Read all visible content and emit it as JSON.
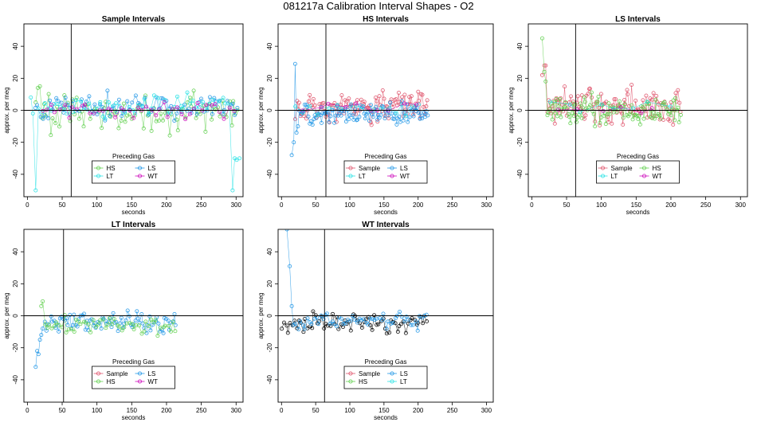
{
  "figure": {
    "title": "081217a   Calibration Interval Shapes - O2"
  },
  "colors": {
    "Sample": "#df536b",
    "HS": "#61d04f",
    "LS": "#2297e6",
    "LT": "#28e2e5",
    "WT": "#cd0bbc",
    "black": "#000000"
  },
  "chart_data": [
    {
      "type": "scatter",
      "title": "Sample Intervals",
      "xlabel": "seconds",
      "ylabel": "approx. per meg",
      "xlim": [
        -5,
        310
      ],
      "ylim": [
        -54,
        54
      ],
      "xticks": [
        0,
        50,
        100,
        150,
        200,
        250,
        300
      ],
      "yticks": [
        -40,
        -20,
        0,
        20,
        40
      ],
      "vline": 63,
      "hline": 0,
      "legend": {
        "title": "Preceding Gas",
        "position": "bottom-center",
        "entries": [
          "HS",
          "LS",
          "LT",
          "WT"
        ]
      },
      "series": [
        {
          "name": "HS",
          "x_range": [
            12,
            305
          ],
          "n": 90,
          "mean": -2,
          "noise": 10,
          "start": [
            [
              12,
              5
            ],
            [
              15,
              14
            ],
            [
              18,
              15
            ]
          ]
        },
        {
          "name": "LS",
          "x_range": [
            10,
            305
          ],
          "n": 80,
          "mean": 3,
          "noise": 7
        },
        {
          "name": "LT",
          "x_range": [
            5,
            305
          ],
          "n": 60,
          "mean": 2,
          "noise": 6,
          "start": [
            [
              5,
              8
            ],
            [
              8,
              -2
            ],
            [
              12,
              -50
            ]
          ],
          "end": [
            [
              295,
              -50
            ],
            [
              298,
              -30
            ],
            [
              301,
              -31
            ],
            [
              305,
              -30
            ]
          ]
        },
        {
          "name": "WT",
          "x_range": [
            20,
            300
          ],
          "n": 45,
          "mean": 0,
          "noise": 5
        }
      ]
    },
    {
      "type": "scatter",
      "title": "HS Intervals",
      "xlabel": "seconds",
      "ylabel": "approx. per meg",
      "xlim": [
        -5,
        310
      ],
      "ylim": [
        -54,
        54
      ],
      "xticks": [
        0,
        50,
        100,
        150,
        200,
        250,
        300
      ],
      "yticks": [
        -40,
        -20,
        0,
        20,
        40
      ],
      "vline": 65,
      "hline": 0,
      "legend": {
        "title": "Preceding Gas",
        "position": "bottom-center",
        "entries": [
          "Sample",
          "LS",
          "LT",
          "WT"
        ]
      },
      "series": [
        {
          "name": "Sample",
          "x_range": [
            20,
            215
          ],
          "n": 110,
          "mean": 2,
          "noise": 8
        },
        {
          "name": "LS",
          "x_range": [
            15,
            215
          ],
          "n": 100,
          "mean": -2,
          "noise": 6,
          "start": [
            [
              15,
              -28
            ],
            [
              18,
              -20
            ],
            [
              20,
              29
            ],
            [
              22,
              -14
            ],
            [
              24,
              -10
            ]
          ]
        },
        {
          "name": "LT",
          "x_range": [
            20,
            210
          ],
          "n": 20,
          "mean": 1,
          "noise": 4
        },
        {
          "name": "WT",
          "x_range": [
            30,
            210
          ],
          "n": 10,
          "mean": 2,
          "noise": 3
        }
      ]
    },
    {
      "type": "scatter",
      "title": "LS Intervals",
      "xlabel": "seconds",
      "ylabel": "approx. per meg",
      "xlim": [
        -5,
        310
      ],
      "ylim": [
        -54,
        54
      ],
      "xticks": [
        0,
        50,
        100,
        150,
        200,
        250,
        300
      ],
      "yticks": [
        -40,
        -20,
        0,
        20,
        40
      ],
      "vline": 63,
      "hline": 0,
      "legend": {
        "title": "Preceding Gas",
        "position": "bottom-center",
        "entries": [
          "Sample",
          "HS",
          "LT",
          "WT"
        ]
      },
      "series": [
        {
          "name": "Sample",
          "x_range": [
            15,
            215
          ],
          "n": 110,
          "mean": 3,
          "noise": 9,
          "start": [
            [
              15,
              22
            ],
            [
              18,
              28
            ],
            [
              20,
              28
            ]
          ]
        },
        {
          "name": "HS",
          "x_range": [
            15,
            215
          ],
          "n": 110,
          "mean": 0,
          "noise": 8,
          "start": [
            [
              15,
              45
            ],
            [
              18,
              24
            ],
            [
              20,
              18
            ]
          ]
        },
        {
          "name": "LT",
          "x_range": [
            20,
            210
          ],
          "n": 8,
          "mean": 2,
          "noise": 4
        },
        {
          "name": "WT",
          "x_range": [
            30,
            200
          ],
          "n": 6,
          "mean": 1,
          "noise": 3
        }
      ]
    },
    {
      "type": "scatter",
      "title": "LT Intervals",
      "xlabel": "seconds",
      "ylabel": "approx. per meg",
      "xlim": [
        -5,
        310
      ],
      "ylim": [
        -54,
        54
      ],
      "xticks": [
        0,
        50,
        100,
        150,
        200,
        250,
        300
      ],
      "yticks": [
        -40,
        -20,
        0,
        20,
        40
      ],
      "vline": 52,
      "hline": 0,
      "legend": {
        "title": "Preceding Gas",
        "position": "bottom-center",
        "entries": [
          "Sample",
          "LS",
          "HS",
          "WT"
        ]
      },
      "series": [
        {
          "name": "LS",
          "x_range": [
            12,
            215
          ],
          "n": 85,
          "mean": -4,
          "noise": 6,
          "start": [
            [
              12,
              -32
            ],
            [
              14,
              -22
            ],
            [
              16,
              -24
            ],
            [
              18,
              -15
            ],
            [
              20,
              -12
            ],
            [
              22,
              -8
            ]
          ]
        },
        {
          "name": "HS",
          "x_range": [
            20,
            215
          ],
          "n": 55,
          "mean": -6,
          "noise": 5,
          "start": [
            [
              20,
              6
            ],
            [
              22,
              9
            ]
          ]
        }
      ]
    },
    {
      "type": "scatter",
      "title": "WT Intervals",
      "xlabel": "seconds",
      "ylabel": "approx. per meg",
      "xlim": [
        -5,
        310
      ],
      "ylim": [
        -54,
        54
      ],
      "xticks": [
        0,
        50,
        100,
        150,
        200,
        250,
        300
      ],
      "yticks": [
        -40,
        -20,
        0,
        20,
        40
      ],
      "vline": 63,
      "hline": 0,
      "legend": {
        "title": "Preceding Gas",
        "position": "bottom-center",
        "entries": [
          "Sample",
          "LS",
          "HS",
          "LT"
        ]
      },
      "series": [
        {
          "name": "black",
          "x_range": [
            0,
            215
          ],
          "n": 70,
          "mean": -5,
          "noise": 5
        },
        {
          "name": "LS",
          "x_range": [
            5,
            215
          ],
          "n": 60,
          "mean": -3,
          "noise": 5,
          "start": [
            [
              8,
              54
            ],
            [
              12,
              31
            ],
            [
              15,
              6
            ]
          ]
        }
      ]
    }
  ]
}
